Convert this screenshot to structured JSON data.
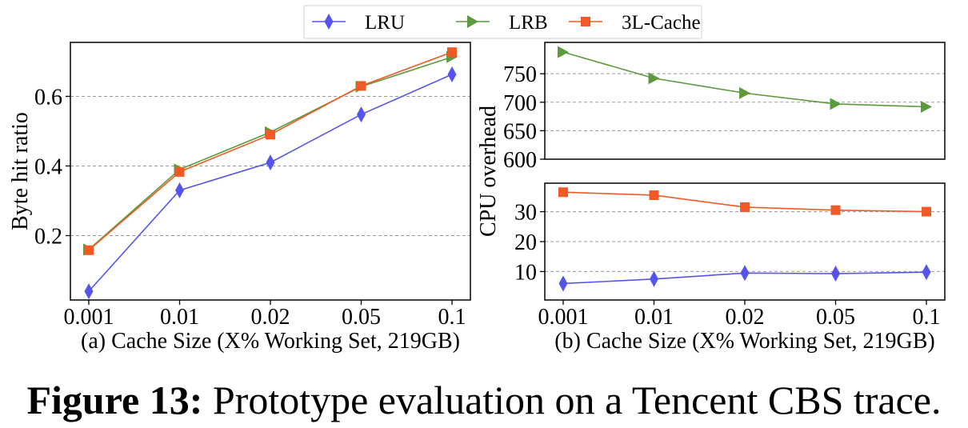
{
  "legend": [
    {
      "name": "LRU",
      "color": "#5555ee",
      "marker": "diamond"
    },
    {
      "name": "LRB",
      "color": "#5c9a3c",
      "marker": "triangle-right"
    },
    {
      "name": "3L-Cache",
      "color": "#f15a24",
      "marker": "square"
    }
  ],
  "caption": {
    "label": "Figure 13:",
    "text": " Prototype evaluation on a Tencent CBS trace."
  },
  "chart_data": [
    {
      "type": "line",
      "panel": "a",
      "xlabel": "(a) Cache Size (X% Working Set, 219GB)",
      "ylabel": "Byte hit ratio",
      "categories": [
        "0.001",
        "0.01",
        "0.02",
        "0.05",
        "0.1"
      ],
      "yticks": [
        0.2,
        0.4,
        0.6
      ],
      "ytick_labels": [
        "0.2",
        "0.4",
        "0.6"
      ],
      "ylim": [
        0.015,
        0.755
      ],
      "grid": "y-dashed",
      "series": [
        {
          "name": "LRU",
          "values": [
            0.04,
            0.33,
            0.41,
            0.548,
            0.663
          ]
        },
        {
          "name": "LRB",
          "values": [
            0.16,
            0.39,
            0.497,
            0.628,
            0.713
          ]
        },
        {
          "name": "3L-Cache",
          "values": [
            0.158,
            0.383,
            0.49,
            0.63,
            0.727
          ]
        }
      ]
    },
    {
      "type": "line",
      "panel": "b-top",
      "categories": [
        "0.001",
        "0.01",
        "0.02",
        "0.05",
        "0.1"
      ],
      "yticks": [
        600,
        650,
        700,
        750
      ],
      "ytick_labels": [
        "600",
        "650",
        "700",
        "750"
      ],
      "ylim": [
        600,
        805
      ],
      "grid": "y-dashed",
      "series": [
        {
          "name": "LRB",
          "values": [
            788,
            742,
            716,
            697,
            692
          ]
        }
      ]
    },
    {
      "type": "line",
      "panel": "b-bottom",
      "xlabel": "(b) Cache Size (X% Working Set, 219GB)",
      "ylabel": "CPU overhead",
      "categories": [
        "0.001",
        "0.01",
        "0.02",
        "0.05",
        "0.1"
      ],
      "yticks": [
        10,
        20,
        30
      ],
      "ytick_labels": [
        "10",
        "20",
        "30"
      ],
      "ylim": [
        0.5,
        39.5
      ],
      "grid": "y-dashed",
      "series": [
        {
          "name": "LRU",
          "values": [
            6,
            7.5,
            9.5,
            9.3,
            9.8
          ]
        },
        {
          "name": "3L-Cache",
          "values": [
            36.5,
            35.5,
            31.5,
            30.5,
            30
          ]
        }
      ]
    }
  ]
}
